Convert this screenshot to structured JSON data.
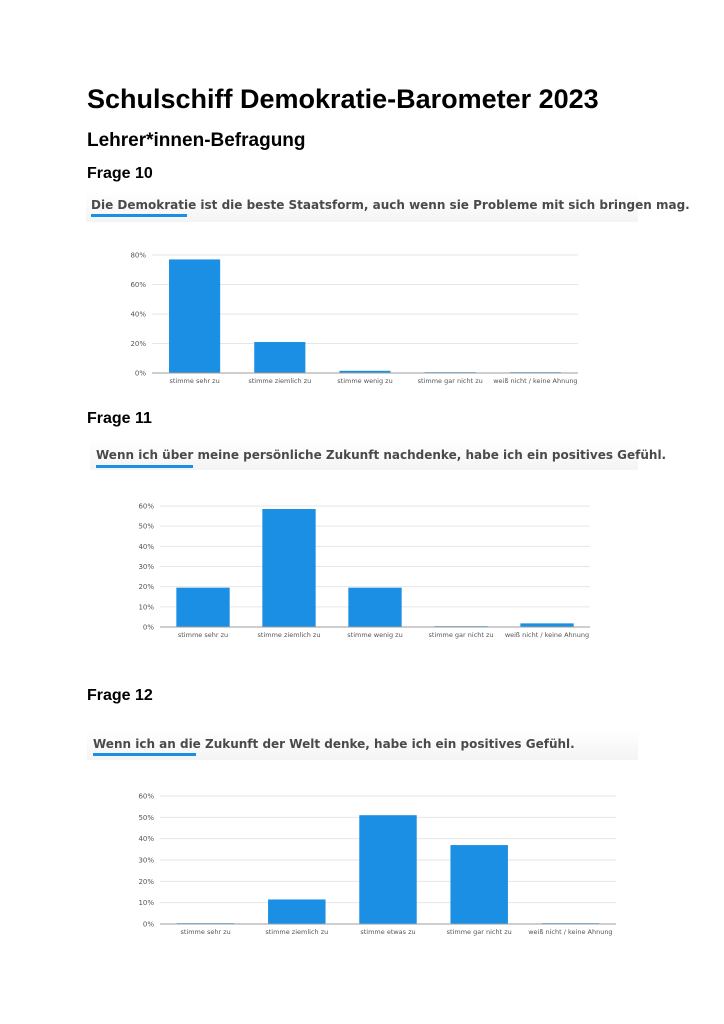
{
  "page": {
    "title": "Schulschiff Demokratie-Barometer 2023",
    "subtitle": "Lehrer*innen-Befragung"
  },
  "sections": [
    {
      "label": "Frage 10",
      "question": "Die Demokratie ist die beste Staatsform, auch wenn sie Probleme mit sich bringen mag."
    },
    {
      "label": "Frage 11",
      "question": "Wenn ich über meine persönliche Zukunft nachdenke, habe ich ein positives Gefühl."
    },
    {
      "label": "Frage 12",
      "question": "Wenn ich an die Zukunft der Welt denke, habe ich ein positives Gefühl."
    }
  ],
  "colors": {
    "bar": "#1a8fe3",
    "underline": "#1a8fe3",
    "grid": "#e6e6e6",
    "axis": "#9e9e9e"
  },
  "chart_data": [
    {
      "type": "bar",
      "categories": [
        "stimme sehr zu",
        "stimme ziemlich zu",
        "stimme wenig zu",
        "stimme gar nicht zu",
        "weiß nicht / keine Ahnung"
      ],
      "values": [
        77,
        21,
        1.5,
        0.3,
        0.3
      ],
      "yticks": [
        "0%",
        "20%",
        "40%",
        "60%",
        "80%"
      ],
      "ylim": [
        0,
        80
      ],
      "grid": true
    },
    {
      "type": "bar",
      "categories": [
        "stimme sehr zu",
        "stimme ziemlich zu",
        "stimme wenig zu",
        "stimme gar nicht zu",
        "weiß nicht / keine Ahnung"
      ],
      "values": [
        19.5,
        58.5,
        19.5,
        0.3,
        1.8
      ],
      "yticks": [
        "0%",
        "10%",
        "20%",
        "30%",
        "40%",
        "50%",
        "60%"
      ],
      "ylim": [
        0,
        60
      ],
      "grid": true
    },
    {
      "type": "bar",
      "categories": [
        "stimme sehr zu",
        "stimme ziemlich zu",
        "stimme etwas zu",
        "stimme gar nicht zu",
        "weiß nicht / keine Ahnung"
      ],
      "values": [
        0.3,
        11.5,
        51,
        37,
        0.3
      ],
      "yticks": [
        "0%",
        "10%",
        "20%",
        "30%",
        "40%",
        "50%",
        "60%"
      ],
      "ylim": [
        0,
        60
      ],
      "grid": true
    }
  ]
}
